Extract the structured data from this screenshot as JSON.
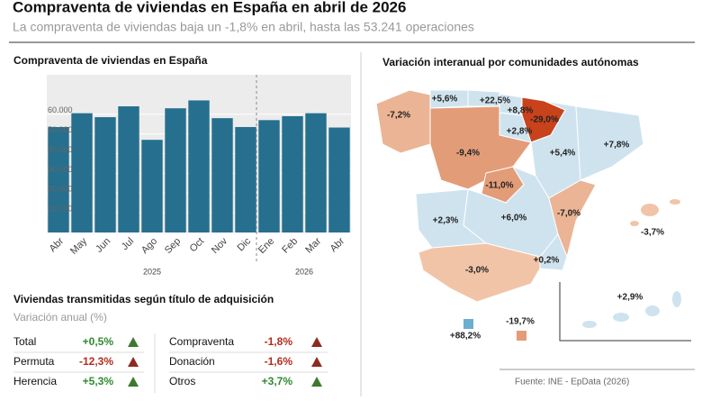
{
  "title": "Compraventa de viviendas en España en abril de 2026",
  "subtitle": "La compraventa de viviendas baja un -1,8% en abril, hasta las 53.241 operaciones",
  "chart_data": {
    "type": "bar",
    "title": "Compraventa de viviendas en España",
    "categories": [
      "Abr",
      "May",
      "Jun",
      "Jul",
      "Ago",
      "Sep",
      "Oct",
      "Nov",
      "Dic",
      "Ene",
      "Feb",
      "Mar",
      "Abr"
    ],
    "values": [
      53500,
      60500,
      58500,
      64000,
      47000,
      63000,
      67000,
      58000,
      53500,
      57000,
      59000,
      60500,
      53241
    ],
    "color": "#266f8f",
    "ylim": [
      0,
      80000
    ],
    "yticks": [
      {
        "value": 10000,
        "label": "10.000"
      },
      {
        "value": 20000,
        "label": "20.000"
      },
      {
        "value": 30000,
        "label": "30.000"
      },
      {
        "value": 40000,
        "label": "40.000"
      },
      {
        "value": 50000,
        "label": "50.000"
      },
      {
        "value": 60000,
        "label": "60.000"
      }
    ],
    "grid": true,
    "year_labels": [
      "2025",
      "2026"
    ]
  },
  "map": {
    "title": "Variación interanual por comunidades autónomas",
    "regions": [
      "+5,6%",
      "+22,5%",
      "+8,8%",
      "-29,0%",
      "-7,2%",
      "+2,8%",
      "-9,4%",
      "+5,4%",
      "+7,8%",
      "-11,0%",
      "+6,0%",
      "-7,0%",
      "+2,3%",
      "+0,2%",
      "-3,0%",
      "-3,7%",
      "+2,9%",
      "+88,2%",
      "-19,7%"
    ]
  },
  "table": {
    "title": "Viviendas transmitidas según título de adquisición",
    "subtitle": "Variación anual (%)",
    "left": [
      [
        "Total",
        "+0,5%"
      ],
      [
        "Permuta",
        "-12,3%"
      ],
      [
        "Herencia",
        "+5,3%"
      ]
    ],
    "right": [
      [
        "Compraventa",
        "-1,8%"
      ],
      [
        "Donación",
        "-1,6%"
      ],
      [
        "Otros",
        "+3,7%"
      ]
    ]
  },
  "source": "Fuente: INE - EpData (2026)"
}
